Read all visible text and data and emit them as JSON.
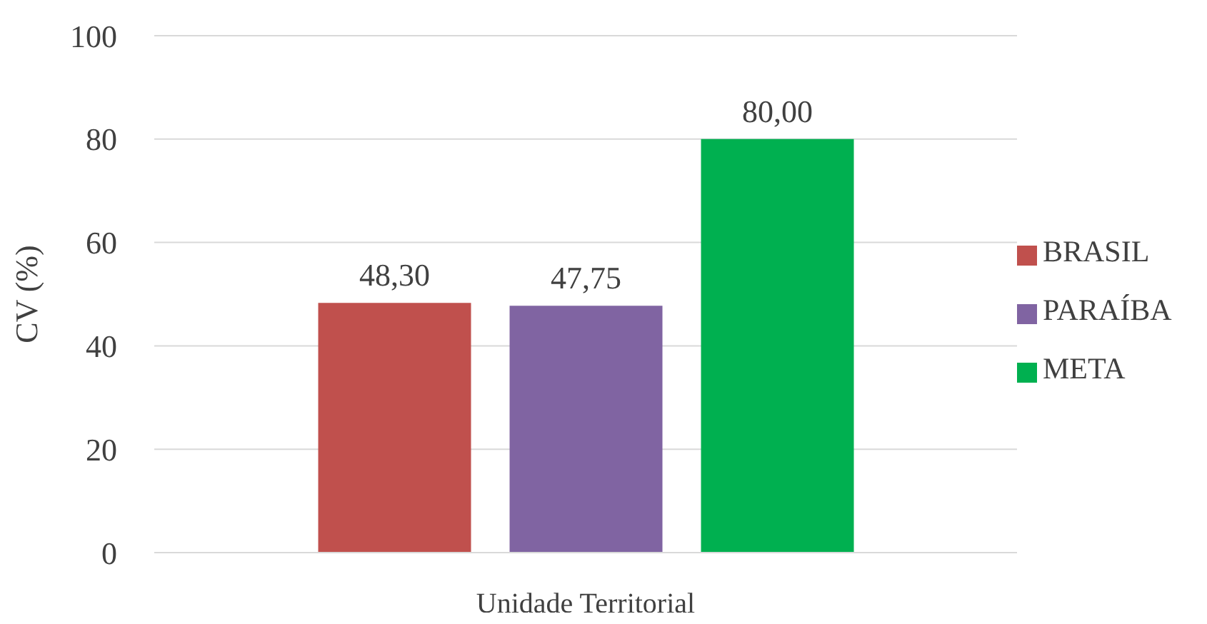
{
  "chart_data": {
    "type": "bar",
    "xlabel": "Unidade Territorial",
    "ylabel": "CV (%)",
    "categories": [
      null
    ],
    "series": [
      {
        "name": "BRASIL",
        "color": "#c0504d",
        "values": [
          48.3
        ],
        "value_labels": [
          "48,30"
        ]
      },
      {
        "name": "PARAÍBA",
        "color": "#8064a2",
        "values": [
          47.75
        ],
        "value_labels": [
          "47,75"
        ]
      },
      {
        "name": "META",
        "color": "#00b050",
        "values": [
          80.0
        ],
        "value_labels": [
          "80,00"
        ]
      }
    ],
    "ylim": [
      0,
      100
    ],
    "yticks": [
      0,
      20,
      40,
      60,
      80,
      100
    ],
    "grid": "y",
    "legend": "right"
  }
}
